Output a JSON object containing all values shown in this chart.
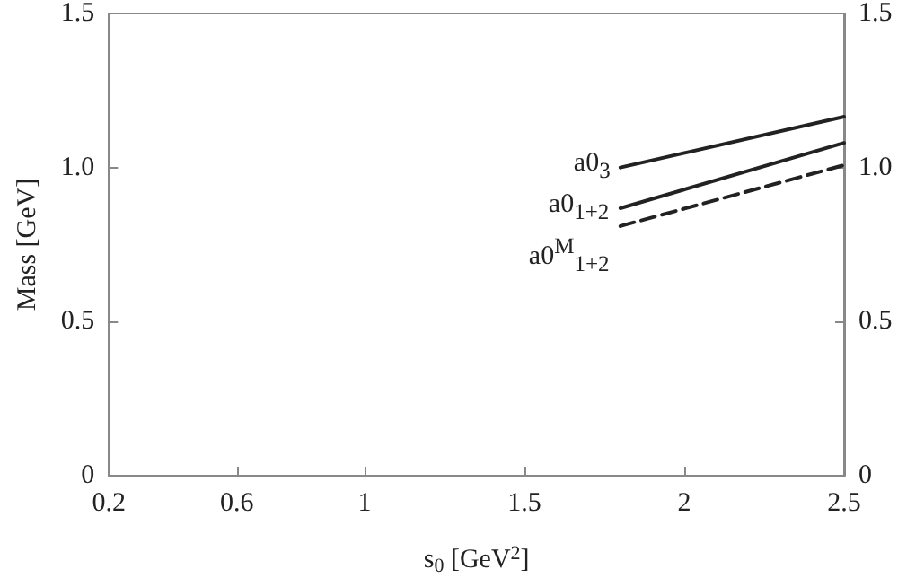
{
  "chart_data": {
    "type": "line",
    "xlabel": "s$_{0}$ [GeV$^{2}$]",
    "ylabel": "Mass [GeV]",
    "x": [
      1.8,
      2.5
    ],
    "series": [
      {
        "name": "a0$_{3}$",
        "color": "#222222",
        "values": [
          1.0,
          1.165
        ],
        "line_style": "solid"
      },
      {
        "name": "a0$_{1+2}$",
        "color": "#222222",
        "values": [
          0.868,
          1.08
        ],
        "line_style": "solid"
      },
      {
        "name": "a0$^{M}$$_{1+2}$",
        "color": "#222222",
        "values": [
          0.81,
          1.008
        ],
        "line_style": "dashed"
      }
    ],
    "xlim": [
      0.2,
      2.5
    ],
    "xticks": [
      0.2,
      0.6,
      1,
      1.5,
      2,
      2.5
    ],
    "ylim": [
      0,
      1.5
    ],
    "yticks": [
      0,
      0.5,
      {
        "value": 1,
        "label": "1.0"
      },
      1.5
    ],
    "y2lim": [
      0,
      1.5
    ],
    "y2ticks": [
      0,
      0.5,
      {
        "value": 1,
        "label": "1.0"
      },
      1.5
    ],
    "grid": false,
    "marker": "none"
  }
}
